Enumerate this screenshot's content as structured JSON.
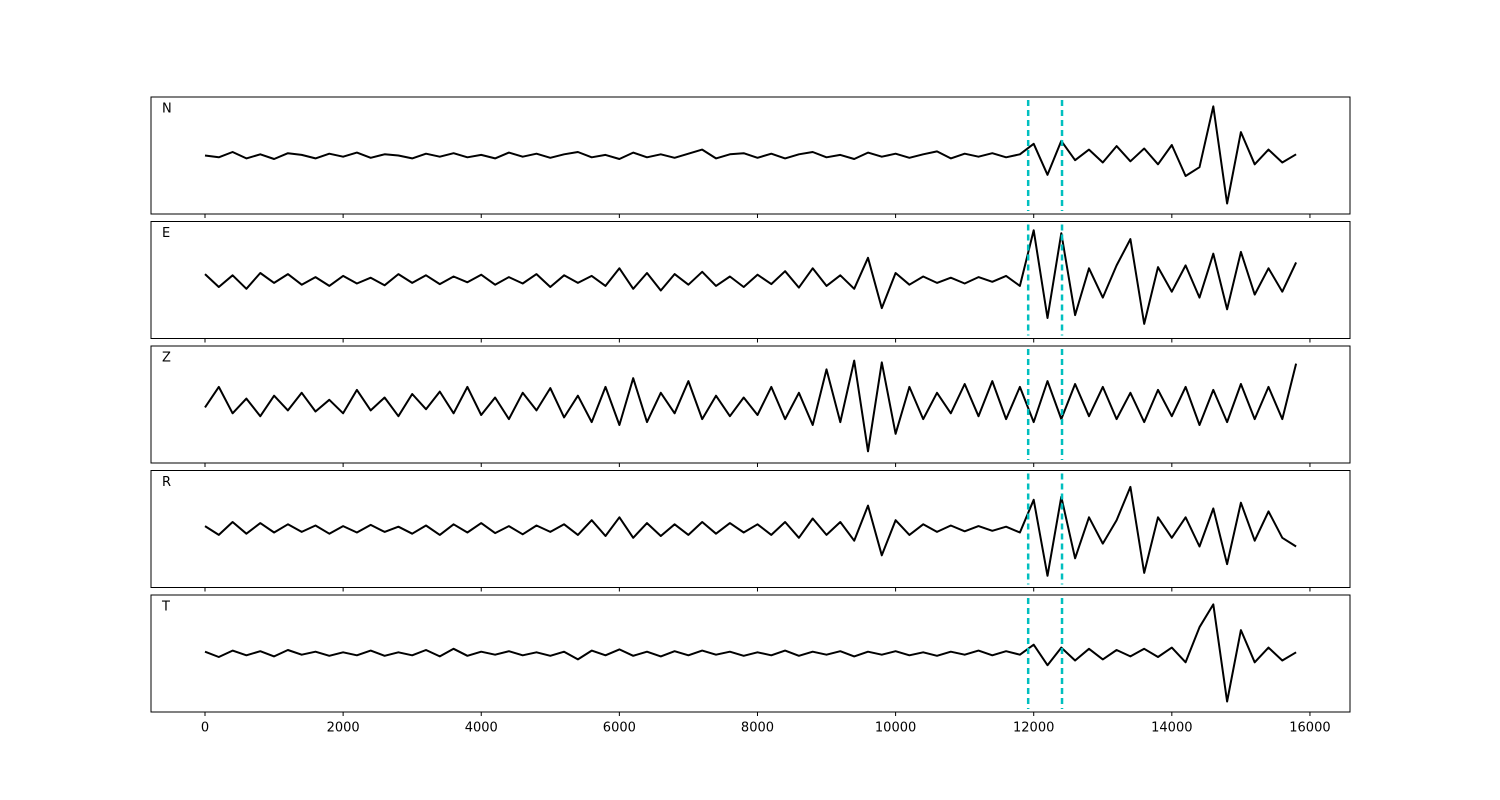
{
  "chart_data": [
    {
      "type": "line",
      "label": "N",
      "color": "#000000",
      "markers": [
        11920,
        12410
      ],
      "marker_color": "#00bfbf",
      "xlim": [
        -782,
        16580
      ],
      "ylim": [
        -1,
        1
      ],
      "x": [
        0,
        200,
        400,
        600,
        800,
        1000,
        1200,
        1400,
        1600,
        1800,
        2000,
        2200,
        2400,
        2600,
        2800,
        3000,
        3200,
        3400,
        3600,
        3800,
        4000,
        4200,
        4400,
        4600,
        4800,
        5000,
        5200,
        5400,
        5600,
        5800,
        6000,
        6200,
        6400,
        6600,
        6800,
        7000,
        7200,
        7400,
        7600,
        7800,
        8000,
        8200,
        8400,
        8600,
        8800,
        9000,
        9200,
        9400,
        9600,
        9800,
        10000,
        10200,
        10400,
        10600,
        10800,
        11000,
        11200,
        11400,
        11600,
        11800,
        12000,
        12200,
        12400,
        12600,
        12800,
        13000,
        13200,
        13400,
        13600,
        13800,
        14000,
        14200,
        14400,
        14600,
        14800,
        15000,
        15200,
        15400,
        15600,
        15800
      ],
      "values": [
        0,
        -0.03,
        0.06,
        -0.05,
        0.02,
        -0.06,
        0.04,
        0.01,
        -0.05,
        0.03,
        -0.02,
        0.05,
        -0.04,
        0.02,
        0,
        -0.05,
        0.03,
        -0.02,
        0.04,
        -0.03,
        0.01,
        -0.05,
        0.05,
        -0.02,
        0.03,
        -0.04,
        0.02,
        0.06,
        -0.03,
        0.01,
        -0.06,
        0.05,
        -0.03,
        0.02,
        -0.04,
        0.03,
        0.1,
        -0.05,
        0.02,
        0.04,
        -0.04,
        0.03,
        -0.05,
        0.02,
        0.06,
        -0.03,
        0.01,
        -0.06,
        0.05,
        -0.02,
        0.03,
        -0.04,
        0.02,
        0.07,
        -0.05,
        0.03,
        -0.02,
        0.04,
        -0.03,
        0.02,
        0.2,
        -0.33,
        0.25,
        -0.08,
        0.1,
        -0.12,
        0.16,
        -0.1,
        0.12,
        -0.15,
        0.18,
        -0.35,
        -0.2,
        0.84,
        -0.82,
        0.4,
        -0.15,
        0.1,
        -0.12,
        0.02
      ]
    },
    {
      "type": "line",
      "label": "E",
      "color": "#000000",
      "markers": [
        11920,
        12410
      ],
      "marker_color": "#00bfbf",
      "xlim": [
        -782,
        16580
      ],
      "ylim": [
        -1,
        1
      ],
      "x": [
        0,
        200,
        400,
        600,
        800,
        1000,
        1200,
        1400,
        1600,
        1800,
        2000,
        2200,
        2400,
        2600,
        2800,
        3000,
        3200,
        3400,
        3600,
        3800,
        4000,
        4200,
        4400,
        4600,
        4800,
        5000,
        5200,
        5400,
        5600,
        5800,
        6000,
        6200,
        6400,
        6600,
        6800,
        7000,
        7200,
        7400,
        7600,
        7800,
        8000,
        8200,
        8400,
        8600,
        8800,
        9000,
        9200,
        9400,
        9600,
        9800,
        10000,
        10200,
        10400,
        10600,
        10800,
        11000,
        11200,
        11400,
        11600,
        11800,
        12000,
        12200,
        12400,
        12600,
        12800,
        13000,
        13200,
        13400,
        13600,
        13800,
        14000,
        14200,
        14400,
        14600,
        14800,
        15000,
        15200,
        15400,
        15600,
        15800
      ],
      "values": [
        0.1,
        -0.12,
        0.08,
        -0.15,
        0.12,
        -0.05,
        0.1,
        -0.08,
        0.05,
        -0.1,
        0.07,
        -0.06,
        0.04,
        -0.09,
        0.1,
        -0.05,
        0.08,
        -0.07,
        0.06,
        -0.04,
        0.09,
        -0.08,
        0.05,
        -0.06,
        0.1,
        -0.12,
        0.08,
        -0.05,
        0.07,
        -0.1,
        0.2,
        -0.15,
        0.12,
        -0.18,
        0.1,
        -0.08,
        0.14,
        -0.1,
        0.06,
        -0.12,
        0.09,
        -0.07,
        0.15,
        -0.13,
        0.2,
        -0.1,
        0.08,
        -0.15,
        0.38,
        -0.48,
        0.12,
        -0.08,
        0.06,
        -0.05,
        0.04,
        -0.06,
        0.05,
        -0.03,
        0.07,
        -0.1,
        0.85,
        -0.65,
        0.8,
        -0.6,
        0.2,
        -0.3,
        0.25,
        0.7,
        -0.75,
        0.22,
        -0.2,
        0.25,
        -0.3,
        0.45,
        -0.5,
        0.48,
        -0.25,
        0.2,
        -0.2,
        0.3
      ]
    },
    {
      "type": "line",
      "label": "Z",
      "color": "#000000",
      "markers": [
        11920,
        12410
      ],
      "marker_color": "#00bfbf",
      "xlim": [
        -782,
        16580
      ],
      "ylim": [
        -1,
        1
      ],
      "x": [
        0,
        200,
        400,
        600,
        800,
        1000,
        1200,
        1400,
        1600,
        1800,
        2000,
        2200,
        2400,
        2600,
        2800,
        3000,
        3200,
        3400,
        3600,
        3800,
        4000,
        4200,
        4400,
        4600,
        4800,
        5000,
        5200,
        5400,
        5600,
        5800,
        6000,
        6200,
        6400,
        6600,
        6800,
        7000,
        7200,
        7400,
        7600,
        7800,
        8000,
        8200,
        8400,
        8600,
        8800,
        9000,
        9200,
        9400,
        9600,
        9800,
        10000,
        10200,
        10400,
        10600,
        10800,
        11000,
        11200,
        11400,
        11600,
        11800,
        12000,
        12200,
        12400,
        12600,
        12800,
        13000,
        13200,
        13400,
        13600,
        13800,
        14000,
        14200,
        14400,
        14600,
        14800,
        15000,
        15200,
        15400,
        15600,
        15800
      ],
      "values": [
        -0.05,
        0.3,
        -0.15,
        0.1,
        -0.2,
        0.15,
        -0.1,
        0.2,
        -0.12,
        0.08,
        -0.15,
        0.25,
        -0.1,
        0.12,
        -0.2,
        0.18,
        -0.08,
        0.22,
        -0.15,
        0.3,
        -0.18,
        0.12,
        -0.25,
        0.2,
        -0.1,
        0.28,
        -0.22,
        0.15,
        -0.3,
        0.3,
        -0.35,
        0.45,
        -0.3,
        0.2,
        -0.15,
        0.4,
        -0.25,
        0.15,
        -0.2,
        0.12,
        -0.18,
        0.3,
        -0.25,
        0.2,
        -0.35,
        0.6,
        -0.3,
        0.75,
        -0.8,
        0.72,
        -0.5,
        0.3,
        -0.25,
        0.2,
        -0.15,
        0.35,
        -0.2,
        0.4,
        -0.25,
        0.3,
        -0.3,
        0.4,
        -0.25,
        0.35,
        -0.2,
        0.3,
        -0.25,
        0.2,
        -0.3,
        0.25,
        -0.2,
        0.3,
        -0.35,
        0.25,
        -0.3,
        0.35,
        -0.25,
        0.3,
        -0.25,
        0.7
      ]
    },
    {
      "type": "line",
      "label": "R",
      "color": "#000000",
      "markers": [
        11920,
        12410
      ],
      "marker_color": "#00bfbf",
      "xlim": [
        -782,
        16580
      ],
      "ylim": [
        -1,
        1
      ],
      "x": [
        0,
        200,
        400,
        600,
        800,
        1000,
        1200,
        1400,
        1600,
        1800,
        2000,
        2200,
        2400,
        2600,
        2800,
        3000,
        3200,
        3400,
        3600,
        3800,
        4000,
        4200,
        4400,
        4600,
        4800,
        5000,
        5200,
        5400,
        5600,
        5800,
        6000,
        6200,
        6400,
        6600,
        6800,
        7000,
        7200,
        7400,
        7600,
        7800,
        8000,
        8200,
        8400,
        8600,
        8800,
        9000,
        9200,
        9400,
        9600,
        9800,
        10000,
        10200,
        10400,
        10600,
        10800,
        11000,
        11200,
        11400,
        11600,
        11800,
        12000,
        12200,
        12400,
        12600,
        12800,
        13000,
        13200,
        13400,
        13600,
        13800,
        14000,
        14200,
        14400,
        14600,
        14800,
        15000,
        15200,
        15400,
        15600,
        15800
      ],
      "values": [
        0.05,
        -0.1,
        0.12,
        -0.08,
        0.1,
        -0.06,
        0.08,
        -0.05,
        0.06,
        -0.08,
        0.05,
        -0.06,
        0.07,
        -0.05,
        0.04,
        -0.08,
        0.06,
        -0.1,
        0.08,
        -0.06,
        0.1,
        -0.07,
        0.05,
        -0.09,
        0.06,
        -0.05,
        0.08,
        -0.1,
        0.15,
        -0.12,
        0.2,
        -0.15,
        0.1,
        -0.12,
        0.08,
        -0.1,
        0.12,
        -0.08,
        0.1,
        -0.06,
        0.08,
        -0.1,
        0.12,
        -0.15,
        0.18,
        -0.1,
        0.12,
        -0.2,
        0.4,
        -0.45,
        0.15,
        -0.1,
        0.08,
        -0.05,
        0.06,
        -0.04,
        0.05,
        -0.03,
        0.04,
        -0.06,
        0.5,
        -0.8,
        0.55,
        -0.5,
        0.2,
        -0.25,
        0.15,
        0.72,
        -0.75,
        0.2,
        -0.15,
        0.2,
        -0.3,
        0.35,
        -0.6,
        0.45,
        -0.2,
        0.3,
        -0.15,
        -0.3
      ]
    },
    {
      "type": "line",
      "label": "T",
      "color": "#000000",
      "markers": [
        11920,
        12410
      ],
      "marker_color": "#00bfbf",
      "xlim": [
        -782,
        16580
      ],
      "ylim": [
        -1,
        1
      ],
      "xticks": [
        0,
        2000,
        4000,
        6000,
        8000,
        10000,
        12000,
        14000,
        16000
      ],
      "x": [
        0,
        200,
        400,
        600,
        800,
        1000,
        1200,
        1400,
        1600,
        1800,
        2000,
        2200,
        2400,
        2600,
        2800,
        3000,
        3200,
        3400,
        3600,
        3800,
        4000,
        4200,
        4400,
        4600,
        4800,
        5000,
        5200,
        5400,
        5600,
        5800,
        6000,
        6200,
        6400,
        6600,
        6800,
        7000,
        7200,
        7400,
        7600,
        7800,
        8000,
        8200,
        8400,
        8600,
        8800,
        9000,
        9200,
        9400,
        9600,
        9800,
        10000,
        10200,
        10400,
        10600,
        10800,
        11000,
        11200,
        11400,
        11600,
        11800,
        12000,
        12200,
        12400,
        12600,
        12800,
        13000,
        13200,
        13400,
        13600,
        13800,
        14000,
        14200,
        14400,
        14600,
        14800,
        15000,
        15200,
        15400,
        15600,
        15800
      ],
      "values": [
        0.03,
        -0.06,
        0.05,
        -0.03,
        0.04,
        -0.05,
        0.06,
        -0.02,
        0.03,
        -0.04,
        0.02,
        -0.03,
        0.05,
        -0.04,
        0.02,
        -0.03,
        0.06,
        -0.05,
        0.08,
        -0.04,
        0.03,
        -0.02,
        0.04,
        -0.03,
        0.02,
        -0.04,
        0.03,
        -0.1,
        0.05,
        -0.03,
        0.07,
        -0.04,
        0.03,
        -0.05,
        0.04,
        -0.03,
        0.05,
        -0.02,
        0.03,
        -0.04,
        0.02,
        -0.03,
        0.05,
        -0.04,
        0.03,
        -0.02,
        0.04,
        -0.05,
        0.03,
        -0.02,
        0.04,
        -0.03,
        0.02,
        -0.04,
        0.03,
        -0.02,
        0.05,
        -0.03,
        0.04,
        -0.02,
        0.15,
        -0.2,
        0.1,
        -0.12,
        0.08,
        -0.1,
        0.06,
        -0.05,
        0.08,
        -0.06,
        0.1,
        -0.15,
        0.45,
        0.84,
        -0.82,
        0.4,
        -0.15,
        0.1,
        -0.12,
        0.02
      ]
    }
  ]
}
